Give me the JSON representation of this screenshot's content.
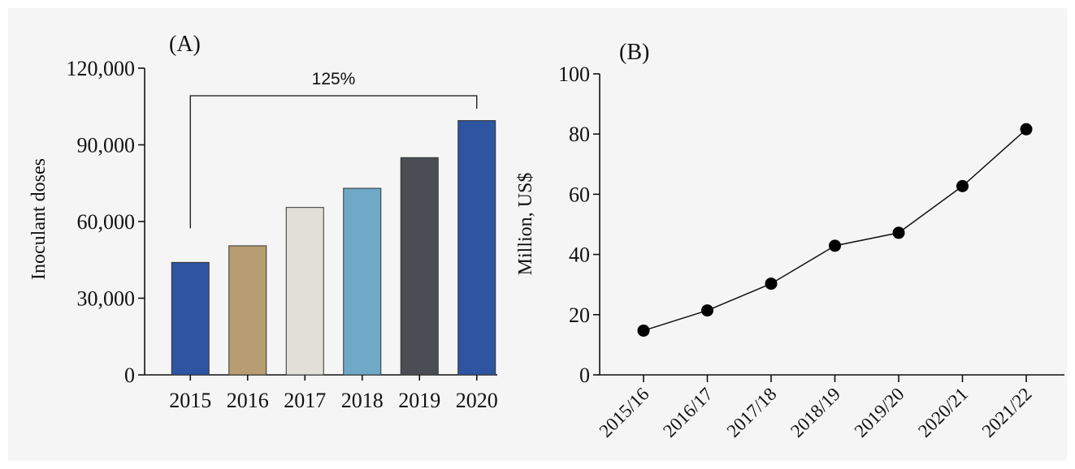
{
  "chart_data": [
    {
      "type": "bar",
      "panel_label": "(A)",
      "ylabel": "Inoculant doses",
      "categories": [
        "2015",
        "2016",
        "2017",
        "2018",
        "2019",
        "2020"
      ],
      "values": [
        44000,
        50500,
        65500,
        73000,
        85000,
        99500
      ],
      "colors": [
        "#2d55a1",
        "#b89d72",
        "#e1dfd7",
        "#6fa9c8",
        "#4a4d54",
        "#2d55a1"
      ],
      "ylim": [
        0,
        120000
      ],
      "yticks": [
        0,
        30000,
        60000,
        90000,
        120000
      ],
      "ytick_labels": [
        "0",
        "30,000",
        "60,000",
        "90,000",
        "120,000"
      ],
      "annotation": {
        "text": "125%",
        "from": "2015",
        "to": "2020"
      },
      "grid": false
    },
    {
      "type": "line",
      "panel_label": "(B)",
      "ylabel": "Million, US$",
      "categories": [
        "2015/16",
        "2016/17",
        "2017/18",
        "2018/19",
        "2019/20",
        "2020/21",
        "2021/22"
      ],
      "values": [
        14.7,
        21.4,
        30.3,
        42.9,
        47.2,
        62.7,
        81.6
      ],
      "ylim": [
        0,
        100
      ],
      "yticks": [
        0,
        20,
        40,
        60,
        80,
        100
      ],
      "ytick_labels": [
        "0",
        "20",
        "40",
        "60",
        "80",
        "100"
      ],
      "marker": "circle",
      "grid": false
    }
  ]
}
